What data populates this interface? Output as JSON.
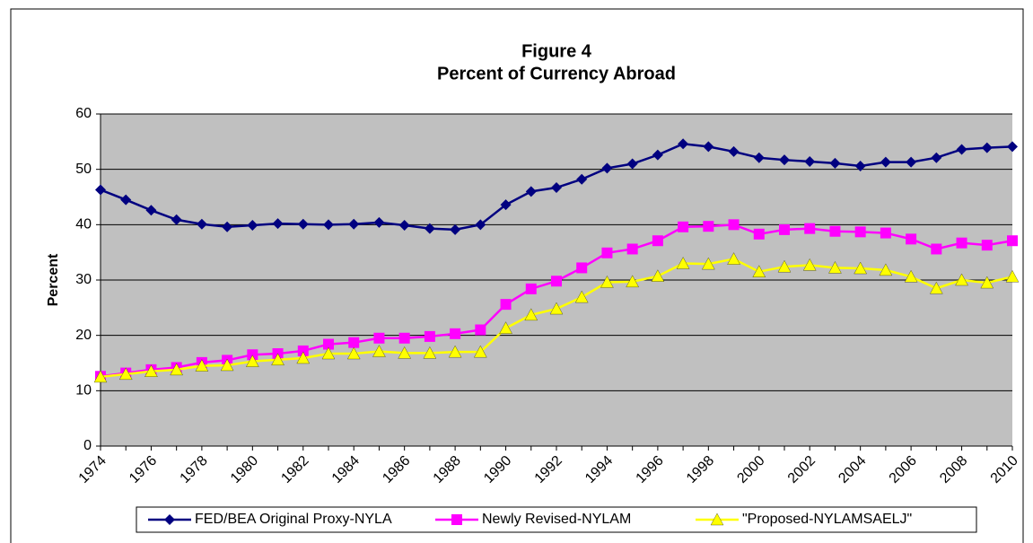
{
  "chart_data": {
    "type": "line",
    "title": "Figure 4",
    "subtitle": "Percent of Currency Abroad",
    "y_label": "Percent",
    "x": [
      1974,
      1975,
      1976,
      1977,
      1978,
      1979,
      1980,
      1981,
      1982,
      1983,
      1984,
      1985,
      1986,
      1987,
      1988,
      1989,
      1990,
      1991,
      1992,
      1993,
      1994,
      1995,
      1996,
      1997,
      1998,
      1999,
      2000,
      2001,
      2002,
      2003,
      2004,
      2005,
      2006,
      2007,
      2008,
      2009,
      2010
    ],
    "xlim": [
      1974,
      2010
    ],
    "xticks": [
      1974,
      1976,
      1978,
      1980,
      1982,
      1984,
      1986,
      1988,
      1990,
      1992,
      1994,
      1996,
      1998,
      2000,
      2002,
      2004,
      2006,
      2008,
      2010
    ],
    "ylim": [
      0,
      60
    ],
    "yticks": [
      0,
      10,
      20,
      30,
      40,
      50,
      60
    ],
    "grid": true,
    "legend": "bottom",
    "series": [
      {
        "name": "FED/BEA Original Proxy-NYLA",
        "color": "#000080",
        "marker": "diamond",
        "values": [
          46.3,
          44.5,
          42.6,
          40.9,
          40.1,
          39.6,
          39.9,
          40.2,
          40.1,
          40.0,
          40.1,
          40.4,
          39.9,
          39.3,
          39.1,
          40.0,
          43.6,
          46.0,
          46.7,
          48.2,
          50.2,
          51.0,
          52.6,
          54.6,
          54.1,
          53.2,
          52.1,
          51.7,
          51.4,
          51.1,
          50.6,
          51.3,
          51.3,
          52.1,
          53.6,
          53.9,
          54.1
        ]
      },
      {
        "name": "Newly Revised-NYLAM",
        "color": "#ff00ff",
        "marker": "square",
        "values": [
          12.6,
          13.2,
          13.8,
          14.2,
          15.1,
          15.5,
          16.5,
          16.7,
          17.2,
          18.4,
          18.7,
          19.5,
          19.5,
          19.8,
          20.3,
          21.0,
          25.6,
          28.4,
          29.8,
          32.2,
          34.9,
          35.6,
          37.1,
          39.6,
          39.7,
          40.0,
          38.3,
          39.1,
          39.3,
          38.8,
          38.7,
          38.5,
          37.4,
          35.6,
          36.7,
          36.3,
          37.1
        ]
      },
      {
        "name": "\"Proposed-NYLAMSAELJ\"",
        "color": "#ffff00",
        "marker": "triangle",
        "values": [
          12.5,
          13.0,
          13.5,
          13.8,
          14.5,
          14.6,
          15.3,
          15.6,
          15.9,
          16.7,
          16.7,
          17.1,
          16.8,
          16.8,
          17.0,
          17.0,
          21.3,
          23.7,
          24.8,
          26.9,
          29.6,
          29.7,
          30.7,
          33.0,
          32.9,
          33.8,
          31.5,
          32.4,
          32.7,
          32.2,
          32.1,
          31.8,
          30.6,
          28.5,
          30.0,
          29.5,
          30.6
        ]
      }
    ]
  }
}
